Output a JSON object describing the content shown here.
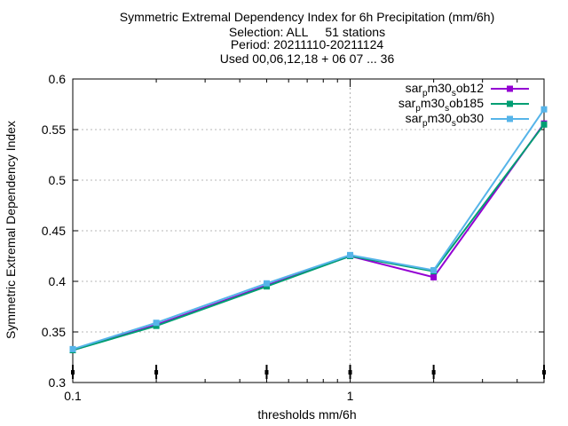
{
  "chart_data": {
    "type": "line",
    "title_lines": [
      "Symmetric Extremal Dependency Index  for 6h Precipitation (mm/6h)",
      "Selection: ALL     51 stations",
      "Period: 20211110-20211124",
      "Used 00,06,12,18 + 06 07 ... 36"
    ],
    "xlabel": "thresholds mm/6h",
    "ylabel": "Symmetric Extremal Dependency Index",
    "x_scale": "log",
    "xlim": [
      0.1,
      5
    ],
    "ylim": [
      0.3,
      0.6
    ],
    "x_ticks": [
      {
        "value": 0.1,
        "label": "0.1"
      },
      {
        "value": 1,
        "label": "1"
      }
    ],
    "y_ticks": [
      {
        "value": 0.3,
        "label": "0.3"
      },
      {
        "value": 0.35,
        "label": "0.35"
      },
      {
        "value": 0.4,
        "label": "0.4"
      },
      {
        "value": 0.45,
        "label": "0.45"
      },
      {
        "value": 0.5,
        "label": "0.5"
      },
      {
        "value": 0.55,
        "label": "0.55"
      },
      {
        "value": 0.6,
        "label": "0.6"
      }
    ],
    "grid": true,
    "legend_position": "top-right",
    "threshold_markers": [
      0.1,
      0.2,
      0.5,
      1,
      2,
      5
    ],
    "x": [
      0.1,
      0.2,
      0.5,
      1,
      2,
      5
    ],
    "series": [
      {
        "name": "sar_pm30_sob12",
        "name_parts": [
          "sar",
          "p",
          "m30",
          "s",
          "ob12"
        ],
        "color": "#9400d3",
        "values": [
          0.332,
          0.357,
          0.396,
          0.425,
          0.404,
          0.556
        ]
      },
      {
        "name": "sar_pm30_sob185",
        "name_parts": [
          "sar",
          "p",
          "m30",
          "s",
          "ob185"
        ],
        "color": "#009e73",
        "values": [
          0.332,
          0.356,
          0.395,
          0.425,
          0.41,
          0.555
        ]
      },
      {
        "name": "sar_pm30_sob30",
        "name_parts": [
          "sar",
          "p",
          "m30",
          "s",
          "ob30"
        ],
        "color": "#56b4e9",
        "values": [
          0.333,
          0.359,
          0.398,
          0.426,
          0.411,
          0.57
        ]
      }
    ]
  }
}
